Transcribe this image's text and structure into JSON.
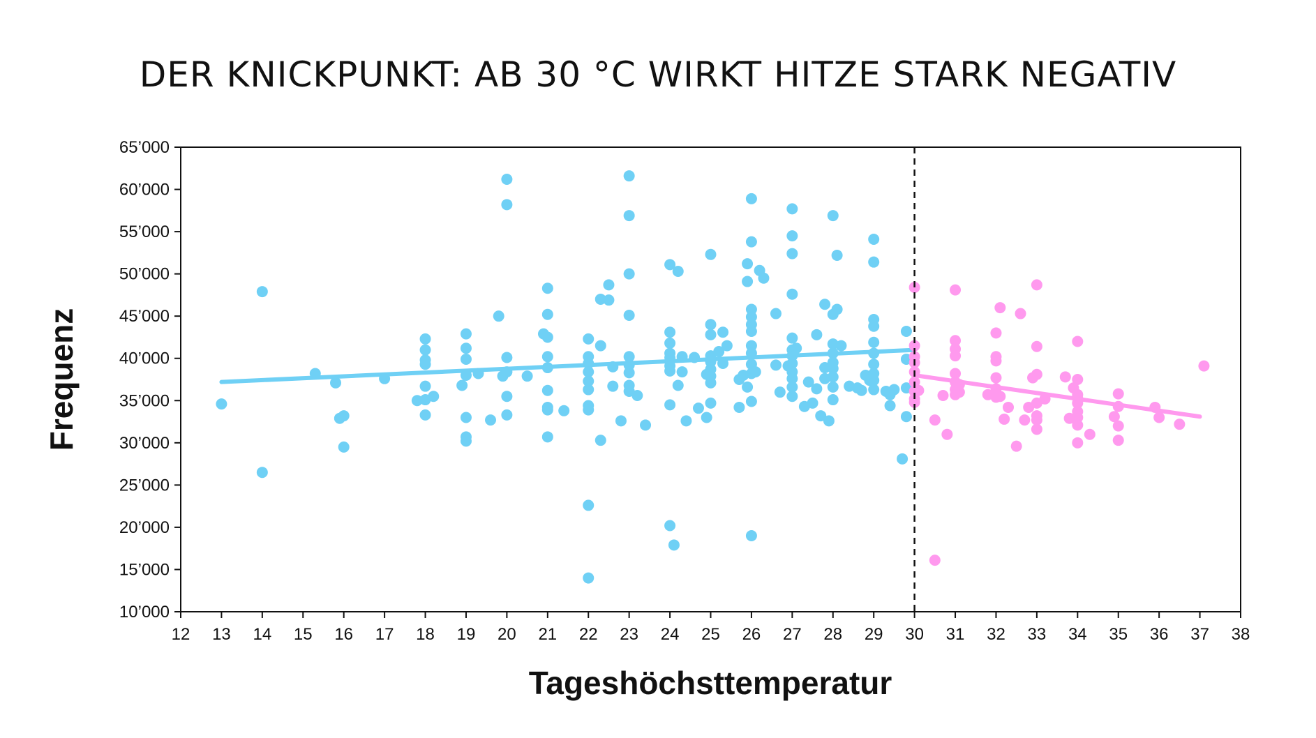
{
  "chart_data": {
    "type": "scatter",
    "title": "DER KNICKPUNKT: AB 30 °C WIRKT HITZE STARK NEGATIV",
    "xlabel": "Tageshöchsttemperatur",
    "ylabel": "Frequenz",
    "xlim": [
      12,
      38
    ],
    "ylim": [
      10000,
      65000
    ],
    "x_ticks": [
      12,
      13,
      14,
      15,
      16,
      17,
      18,
      19,
      20,
      21,
      22,
      23,
      24,
      25,
      26,
      27,
      28,
      29,
      30,
      31,
      32,
      33,
      34,
      35,
      36,
      37,
      38
    ],
    "y_ticks": [
      10000,
      15000,
      20000,
      25000,
      30000,
      35000,
      40000,
      45000,
      50000,
      55000,
      60000,
      65000
    ],
    "y_tick_labels": [
      "10’000",
      "15’000",
      "20’000",
      "25’000",
      "30’000",
      "35’000",
      "40’000",
      "45’000",
      "50’000",
      "55’000",
      "60’000",
      "65’000"
    ],
    "threshold_x": 30,
    "grid": false,
    "series": [
      {
        "color": "#6fd0f5",
        "trend": {
          "x": [
            13,
            30
          ],
          "y": [
            37200,
            41000
          ]
        },
        "points": [
          [
            13,
            34600
          ],
          [
            14,
            47900
          ],
          [
            14,
            26500
          ],
          [
            15.3,
            38200
          ],
          [
            15.8,
            37100
          ],
          [
            15.9,
            32900
          ],
          [
            16,
            33200
          ],
          [
            16,
            29500
          ],
          [
            17,
            37600
          ],
          [
            17.8,
            35000
          ],
          [
            18,
            42300
          ],
          [
            18,
            41000
          ],
          [
            18,
            39800
          ],
          [
            18,
            39300
          ],
          [
            18,
            36700
          ],
          [
            18,
            35100
          ],
          [
            18,
            33300
          ],
          [
            18.2,
            35500
          ],
          [
            18.9,
            36800
          ],
          [
            19,
            42900
          ],
          [
            19,
            41200
          ],
          [
            19,
            39900
          ],
          [
            19,
            38000
          ],
          [
            19,
            33000
          ],
          [
            19,
            30700
          ],
          [
            19,
            30200
          ],
          [
            19.3,
            38200
          ],
          [
            19.6,
            32700
          ],
          [
            19.8,
            45000
          ],
          [
            19.9,
            37900
          ],
          [
            20,
            61200
          ],
          [
            20,
            58200
          ],
          [
            20,
            40100
          ],
          [
            20,
            38400
          ],
          [
            20,
            35500
          ],
          [
            20,
            33300
          ],
          [
            20.5,
            37900
          ],
          [
            20.9,
            42900
          ],
          [
            21,
            48300
          ],
          [
            21,
            45200
          ],
          [
            21,
            42500
          ],
          [
            21,
            40200
          ],
          [
            21,
            38900
          ],
          [
            21,
            36200
          ],
          [
            21,
            34200
          ],
          [
            21,
            33900
          ],
          [
            21,
            30700
          ],
          [
            21.4,
            33800
          ],
          [
            22,
            42300
          ],
          [
            22,
            40200
          ],
          [
            22,
            39400
          ],
          [
            22,
            38400
          ],
          [
            22,
            37300
          ],
          [
            22,
            36300
          ],
          [
            22,
            34400
          ],
          [
            22,
            33900
          ],
          [
            22,
            22600
          ],
          [
            22,
            14000
          ],
          [
            22.3,
            47000
          ],
          [
            22.3,
            41500
          ],
          [
            22.3,
            30300
          ],
          [
            22.5,
            48700
          ],
          [
            22.5,
            46900
          ],
          [
            22.6,
            39000
          ],
          [
            22.6,
            36700
          ],
          [
            22.8,
            32600
          ],
          [
            23,
            61600
          ],
          [
            23,
            56900
          ],
          [
            23,
            50000
          ],
          [
            23,
            45100
          ],
          [
            23,
            40200
          ],
          [
            23,
            39200
          ],
          [
            23,
            38300
          ],
          [
            23,
            36800
          ],
          [
            23,
            36100
          ],
          [
            23.2,
            35600
          ],
          [
            23.4,
            32100
          ],
          [
            24,
            51100
          ],
          [
            24,
            43100
          ],
          [
            24,
            41800
          ],
          [
            24,
            40600
          ],
          [
            24,
            40100
          ],
          [
            24,
            39100
          ],
          [
            24,
            38500
          ],
          [
            24,
            34500
          ],
          [
            24,
            20200
          ],
          [
            24.1,
            17900
          ],
          [
            24.2,
            50300
          ],
          [
            24.2,
            36800
          ],
          [
            24.3,
            40200
          ],
          [
            24.3,
            38400
          ],
          [
            24.4,
            32600
          ],
          [
            24.6,
            40100
          ],
          [
            24.7,
            34100
          ],
          [
            24.9,
            38100
          ],
          [
            24.9,
            33000
          ],
          [
            25,
            52300
          ],
          [
            25,
            44000
          ],
          [
            25,
            42800
          ],
          [
            25,
            40300
          ],
          [
            25,
            39600
          ],
          [
            25,
            38700
          ],
          [
            25,
            37900
          ],
          [
            25,
            37100
          ],
          [
            25,
            34700
          ],
          [
            25.2,
            40800
          ],
          [
            25.3,
            43100
          ],
          [
            25.3,
            39400
          ],
          [
            25.4,
            41500
          ],
          [
            25.7,
            37500
          ],
          [
            25.7,
            34200
          ],
          [
            26,
            58900
          ],
          [
            26,
            53800
          ],
          [
            26,
            45800
          ],
          [
            26,
            44900
          ],
          [
            26,
            44000
          ],
          [
            26,
            43200
          ],
          [
            26,
            41500
          ],
          [
            26,
            40600
          ],
          [
            26,
            39300
          ],
          [
            26,
            38200
          ],
          [
            26,
            34900
          ],
          [
            26,
            19000
          ],
          [
            25.9,
            51200
          ],
          [
            25.9,
            49100
          ],
          [
            25.9,
            36600
          ],
          [
            25.8,
            38000
          ],
          [
            26.1,
            38400
          ],
          [
            26.2,
            50400
          ],
          [
            26.3,
            49500
          ],
          [
            26.6,
            45300
          ],
          [
            26.6,
            39200
          ],
          [
            26.7,
            36000
          ],
          [
            26.9,
            39100
          ],
          [
            27,
            57700
          ],
          [
            27,
            54500
          ],
          [
            27,
            52400
          ],
          [
            27,
            47600
          ],
          [
            27,
            42400
          ],
          [
            27,
            41000
          ],
          [
            27,
            40300
          ],
          [
            27,
            39400
          ],
          [
            27,
            38400
          ],
          [
            27,
            37600
          ],
          [
            27,
            36600
          ],
          [
            27,
            35500
          ],
          [
            27.1,
            41200
          ],
          [
            27.3,
            34300
          ],
          [
            27.4,
            37200
          ],
          [
            27.5,
            34700
          ],
          [
            27.6,
            36400
          ],
          [
            27.6,
            42800
          ],
          [
            27.7,
            33200
          ],
          [
            27.8,
            38900
          ],
          [
            27.8,
            37600
          ],
          [
            27.8,
            46400
          ],
          [
            27.9,
            32600
          ],
          [
            28,
            56900
          ],
          [
            28,
            45200
          ],
          [
            28,
            41700
          ],
          [
            28,
            40600
          ],
          [
            28,
            39500
          ],
          [
            28,
            38800
          ],
          [
            28,
            37800
          ],
          [
            28,
            36600
          ],
          [
            28,
            35100
          ],
          [
            28.1,
            52200
          ],
          [
            28.1,
            45800
          ],
          [
            28.2,
            41500
          ],
          [
            28.4,
            36700
          ],
          [
            28.6,
            36500
          ],
          [
            28.7,
            36200
          ],
          [
            28.8,
            38000
          ],
          [
            29,
            54100
          ],
          [
            29,
            51400
          ],
          [
            29,
            44600
          ],
          [
            29,
            43800
          ],
          [
            29,
            41900
          ],
          [
            29,
            40600
          ],
          [
            29,
            39300
          ],
          [
            29,
            38200
          ],
          [
            29,
            37400
          ],
          [
            29,
            36300
          ],
          [
            28.9,
            37400
          ],
          [
            29.3,
            36100
          ],
          [
            29.4,
            34400
          ],
          [
            29.4,
            35700
          ],
          [
            29.5,
            36300
          ],
          [
            29.7,
            28100
          ],
          [
            29.8,
            43200
          ],
          [
            29.8,
            39900
          ],
          [
            29.8,
            36500
          ],
          [
            29.8,
            33100
          ]
        ]
      },
      {
        "color": "#ff99ee",
        "trend": {
          "x": [
            30,
            37
          ],
          "y": [
            38000,
            33100
          ]
        },
        "points": [
          [
            30,
            48400
          ],
          [
            30,
            41500
          ],
          [
            30,
            40200
          ],
          [
            30,
            39500
          ],
          [
            30,
            38400
          ],
          [
            30,
            37200
          ],
          [
            30,
            36100
          ],
          [
            30,
            35200
          ],
          [
            30,
            34800
          ],
          [
            30.1,
            36200
          ],
          [
            30.5,
            32700
          ],
          [
            30.5,
            16100
          ],
          [
            30.7,
            35600
          ],
          [
            30.8,
            31000
          ],
          [
            31,
            48100
          ],
          [
            31,
            42100
          ],
          [
            31,
            41100
          ],
          [
            31,
            40300
          ],
          [
            31,
            38200
          ],
          [
            31,
            37200
          ],
          [
            31,
            36300
          ],
          [
            31,
            35700
          ],
          [
            31.1,
            36000
          ],
          [
            31.1,
            36900
          ],
          [
            31.8,
            35700
          ],
          [
            32,
            43000
          ],
          [
            32,
            40200
          ],
          [
            32,
            39700
          ],
          [
            32,
            37700
          ],
          [
            32,
            36400
          ],
          [
            32,
            35400
          ],
          [
            32.1,
            46000
          ],
          [
            32.1,
            35500
          ],
          [
            32.2,
            32800
          ],
          [
            32.3,
            34200
          ],
          [
            32.5,
            29600
          ],
          [
            32.6,
            45300
          ],
          [
            32.7,
            32700
          ],
          [
            32.8,
            34200
          ],
          [
            32.9,
            37700
          ],
          [
            33,
            48700
          ],
          [
            33,
            41400
          ],
          [
            33,
            38100
          ],
          [
            33,
            34700
          ],
          [
            33,
            33200
          ],
          [
            33,
            32700
          ],
          [
            33,
            31600
          ],
          [
            33.2,
            35200
          ],
          [
            33.7,
            37800
          ],
          [
            33.8,
            32900
          ],
          [
            33.9,
            36500
          ],
          [
            34,
            42000
          ],
          [
            34,
            37500
          ],
          [
            34,
            35700
          ],
          [
            34,
            35300
          ],
          [
            34,
            34700
          ],
          [
            34,
            33700
          ],
          [
            34,
            33000
          ],
          [
            34,
            32100
          ],
          [
            34,
            30000
          ],
          [
            34.3,
            31000
          ],
          [
            34.9,
            33100
          ],
          [
            35,
            35800
          ],
          [
            35,
            34300
          ],
          [
            35,
            32000
          ],
          [
            35,
            30300
          ],
          [
            35.9,
            34200
          ],
          [
            36,
            33000
          ],
          [
            36.5,
            32200
          ],
          [
            37.1,
            39100
          ]
        ]
      }
    ]
  }
}
